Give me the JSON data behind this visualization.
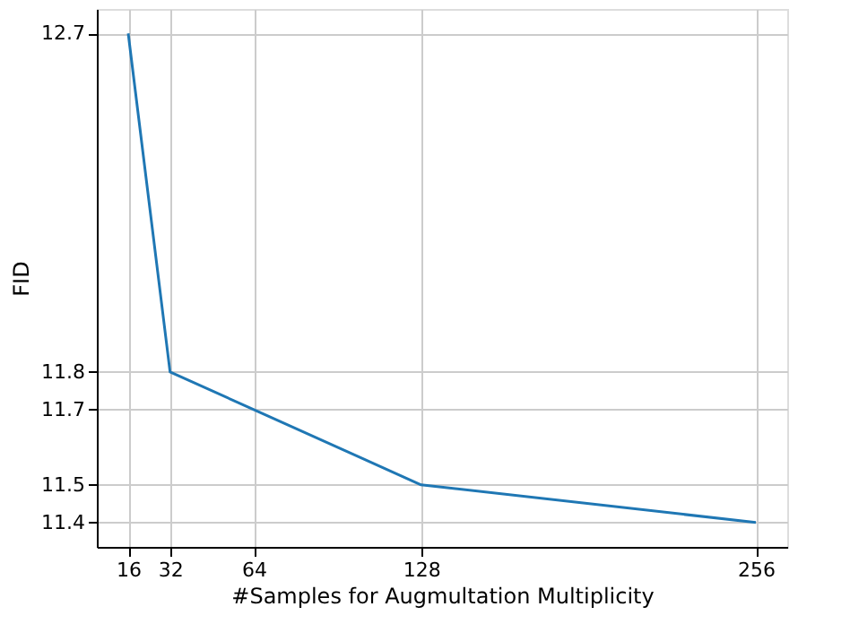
{
  "chart_data": {
    "type": "line",
    "xlabel": "#Samples for Augmultation Multiplicity",
    "ylabel": "FID",
    "x": [
      16,
      32,
      64,
      128,
      256
    ],
    "series": [
      {
        "color": "#1f77b4",
        "values": [
          12.7,
          11.8,
          11.7,
          11.5,
          11.4
        ]
      }
    ],
    "xlim": [
      4,
      268
    ],
    "ylim": [
      11.335,
      12.765
    ],
    "xticks": [
      16,
      32,
      64,
      128,
      256
    ],
    "yticks": [
      11.4,
      11.5,
      11.7,
      11.8,
      12.7
    ],
    "grid": true,
    "marker": "none",
    "line_style": "solid"
  }
}
